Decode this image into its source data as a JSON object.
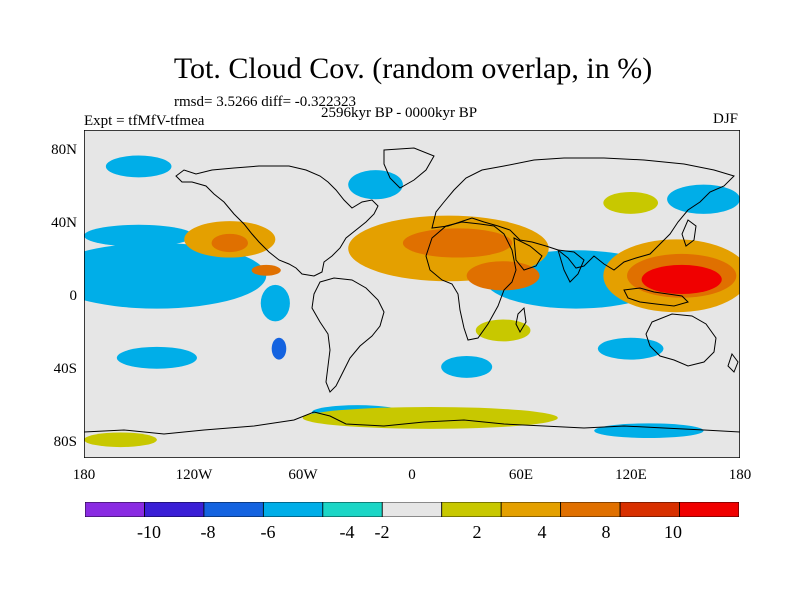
{
  "title": "Tot. Cloud Cov. (random overlap, in %)",
  "stats": "rmsd= 3.5266 diff= -0.322323",
  "experiment": "Expt = tfMfV-tfmea",
  "period": "2596kyr BP - 0000kyr BP",
  "season": "DJF",
  "map": {
    "lat_ticks": [
      "80N",
      "40N",
      "0",
      "40S",
      "80S"
    ],
    "lat_values": [
      80,
      40,
      0,
      -40,
      -80
    ],
    "lon_ticks": [
      "180",
      "120W",
      "60W",
      "0",
      "60E",
      "120E",
      "180"
    ],
    "lon_values": [
      -180,
      -120,
      -60,
      0,
      60,
      120,
      180
    ],
    "lat_range": [
      -90,
      90
    ],
    "lon_range": [
      -180,
      180
    ],
    "background_color": "#e6e6e6",
    "coastline_color": "#000000",
    "anomaly_fields": [
      {
        "level": "-10",
        "lon": -135,
        "lat": 13,
        "rlon": 18,
        "rlat": 5
      },
      {
        "level": "-8",
        "lon": -135,
        "lat": 12,
        "rlon": 30,
        "rlat": 10
      },
      {
        "level": "-6",
        "lon": -138,
        "lat": 12,
        "rlon": 45,
        "rlat": 14
      },
      {
        "level": "-4",
        "lon": -140,
        "lat": 10,
        "rlon": 60,
        "rlat": 18
      },
      {
        "level": "-6",
        "lon": 75,
        "lat": 6,
        "rlon": 18,
        "rlat": 8
      },
      {
        "level": "-8",
        "lon": 76,
        "lat": 6,
        "rlon": 10,
        "rlat": 5
      },
      {
        "level": "-4",
        "lon": 90,
        "lat": 8,
        "rlon": 50,
        "rlat": 16
      },
      {
        "level": "-4",
        "lon": -150,
        "lat": 32,
        "rlon": 30,
        "rlat": 6
      },
      {
        "level": "-4",
        "lon": -20,
        "lat": 60,
        "rlon": 15,
        "rlat": 8
      },
      {
        "level": "-4",
        "lon": 160,
        "lat": 52,
        "rlon": 20,
        "rlat": 8
      },
      {
        "level": "-4",
        "lon": -140,
        "lat": -35,
        "rlon": 22,
        "rlat": 6
      },
      {
        "level": "-4",
        "lon": -150,
        "lat": 70,
        "rlon": 18,
        "rlat": 6
      },
      {
        "level": "-4",
        "lon": 130,
        "lat": -75,
        "rlon": 30,
        "rlat": 4
      },
      {
        "level": "-4",
        "lon": -30,
        "lat": -65,
        "rlon": 25,
        "rlat": 4
      },
      {
        "level": "-4",
        "lon": 30,
        "lat": -40,
        "rlon": 14,
        "rlat": 6
      },
      {
        "level": "-4",
        "lon": -75,
        "lat": -5,
        "rlon": 8,
        "rlat": 10
      },
      {
        "level": "-6",
        "lon": -73,
        "lat": -30,
        "rlon": 4,
        "rlat": 6
      },
      {
        "level": "-4",
        "lon": 120,
        "lat": -30,
        "rlon": 18,
        "rlat": 6
      },
      {
        "level": "4",
        "lon": 20,
        "lat": 25,
        "rlon": 55,
        "rlat": 18
      },
      {
        "level": "8",
        "lon": 25,
        "lat": 28,
        "rlon": 30,
        "rlat": 8
      },
      {
        "level": "8",
        "lon": 50,
        "lat": 10,
        "rlon": 20,
        "rlat": 8
      },
      {
        "level": "4",
        "lon": -100,
        "lat": 30,
        "rlon": 25,
        "rlat": 10
      },
      {
        "level": "8",
        "lon": -100,
        "lat": 28,
        "rlon": 10,
        "rlat": 5
      },
      {
        "level": "4",
        "lon": 145,
        "lat": 10,
        "rlon": 40,
        "rlat": 20
      },
      {
        "level": "8",
        "lon": 148,
        "lat": 10,
        "rlon": 30,
        "rlat": 12
      },
      {
        "level": "10",
        "lon": 148,
        "lat": 8,
        "rlon": 22,
        "rlat": 8
      },
      {
        "level": "8",
        "lon": -80,
        "lat": 13,
        "rlon": 8,
        "rlat": 3
      },
      {
        "level": "2",
        "lon": 10,
        "lat": -68,
        "rlon": 70,
        "rlat": 6
      },
      {
        "level": "2",
        "lon": -160,
        "lat": -80,
        "rlon": 20,
        "rlat": 4
      },
      {
        "level": "2",
        "lon": 50,
        "lat": -20,
        "rlon": 15,
        "rlat": 6
      },
      {
        "level": "2",
        "lon": 120,
        "lat": 50,
        "rlon": 15,
        "rlat": 6
      }
    ]
  },
  "colorbar": {
    "colors": [
      "#8a2be2",
      "#3a1fd6",
      "#1463e0",
      "#00aee8",
      "#1bd6c6",
      "#e6e6e6",
      "#c8c800",
      "#e4a000",
      "#e07000",
      "#d83000",
      "#f00000"
    ],
    "labels": [
      "-10",
      "-8",
      "-6",
      "-4",
      "-2",
      "2",
      "4",
      "8",
      "10"
    ],
    "level_colors": {
      "-10": "#8a2be2",
      "-8": "#3a1fd6",
      "-6": "#1463e0",
      "-4": "#00aee8",
      "-2": "#1bd6c6",
      "2": "#c8c800",
      "4": "#e4a000",
      "8": "#e07000",
      "10": "#f00000"
    }
  }
}
